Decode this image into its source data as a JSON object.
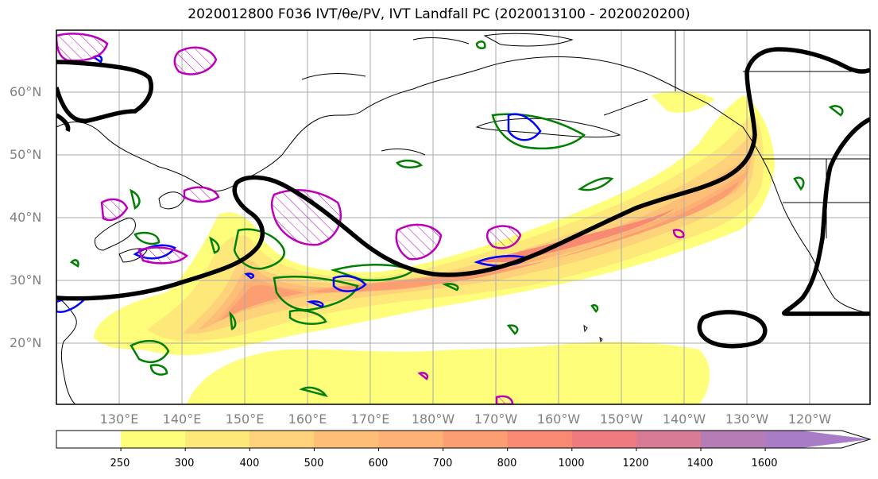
{
  "title": "2020012800 F036 IVT/θe/PV, IVT Landfall PC (2020013100 - 2020020200)",
  "lat_labels": [
    "60°N",
    "50°N",
    "40°N",
    "30°N",
    "20°N"
  ],
  "lon_labels": [
    "130°E",
    "140°E",
    "150°E",
    "160°E",
    "170°E",
    "180°W",
    "170°W",
    "160°W",
    "150°W",
    "140°W",
    "130°W",
    "120°W"
  ],
  "colorbar": {
    "ticks": [
      "250",
      "300",
      "400",
      "500",
      "600",
      "700",
      "800",
      "1000",
      "1200",
      "1400",
      "1600"
    ],
    "colors": [
      "#ffffff",
      "#fefe7a",
      "#fee87a",
      "#fed27a",
      "#fdbf78",
      "#fdb174",
      "#fb9f73",
      "#f88a73",
      "#ee7b7e",
      "#d87c96",
      "#b67cb6",
      "#a87cc6"
    ]
  },
  "legend_colors": {
    "pv": "#000000",
    "theta_e_green": "#008000",
    "theta_e_blue": "#0000ff",
    "ivt_pc_magenta": "#bb00bb"
  }
}
